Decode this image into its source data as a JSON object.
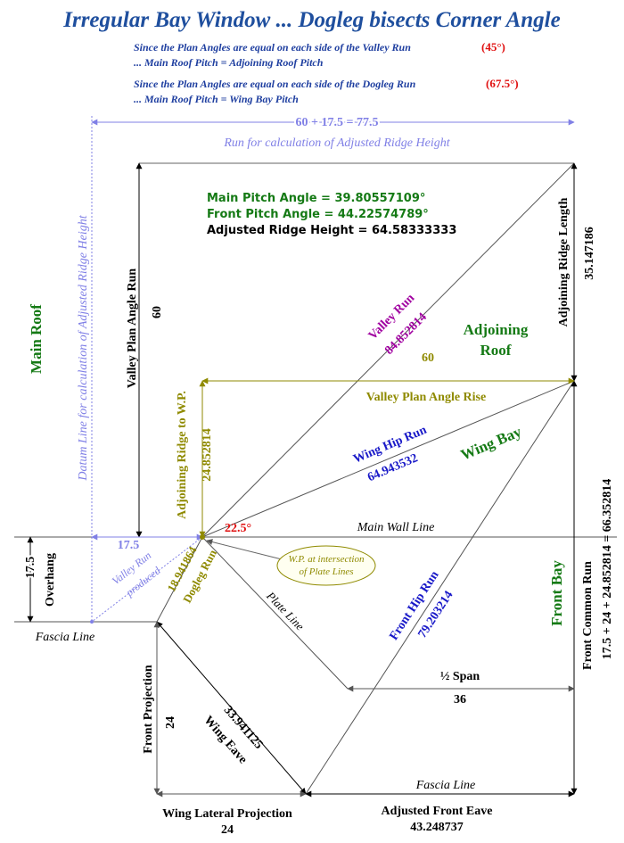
{
  "title": "Irregular Bay Window ... Dogleg bisects Corner Angle",
  "notes": {
    "line1": "Since the Plan Angles are equal on each side of the Valley Run",
    "line1_angle": "(45°)",
    "line2": "... Main Roof Pitch = Adjoining Roof Pitch",
    "line3": "Since the Plan Angles are equal on each side of the Dogleg Run",
    "line3_angle": "(67.5°)",
    "line4": "... Main Roof Pitch = Wing Bay Pitch"
  },
  "top": {
    "dimension": "60 + 17.5 = 77.5",
    "run_label": "Run for calculation of Adjusted Ridge Height"
  },
  "results": {
    "main_pitch": "Main Pitch Angle = 39.80557109°",
    "front_pitch": "Front Pitch Angle = 44.22574789°",
    "ridge_height": "Adjusted Ridge Height = 64.58333333"
  },
  "areas": {
    "main_roof": "Main Roof",
    "adjoining_roof_1": "Adjoining",
    "adjoining_roof_2": "Roof",
    "wing_bay": "Wing Bay",
    "front_bay": "Front Bay"
  },
  "labels": {
    "datum_line": "Datum Line for calculation of Adjusted Ridge Height",
    "valley_plan_angle_run": "Valley Plan Angle Run",
    "valley_plan_angle_run_value": "60",
    "adjoining_ridge_length": "Adjoining Ridge Length",
    "adjoining_ridge_length_value": "35.147186",
    "valley_run": "Valley Run",
    "valley_run_value": "84.852814",
    "valley_plan_angle_rise_value": "60",
    "valley_plan_angle_rise": "Valley Plan Angle Rise",
    "adjoining_ridge_to_wp": "Adjoining Ridge to W.P.",
    "adjoining_ridge_to_wp_value": "24.852814",
    "wing_hip_run": "Wing Hip Run",
    "wing_hip_run_value": "64.943532",
    "angle": "22.5°",
    "main_wall_line": "Main Wall Line",
    "left_dim": "17.5",
    "overhang_value": "17.5",
    "overhang": "Overhang",
    "valley_run_produced_1": "Valley Run",
    "valley_run_produced_2": "produced",
    "dogleg_value": "18.941864",
    "dogleg_run": "Dogleg Run",
    "wp_note_1": "W.P. at intersection",
    "wp_note_2": "of Plate Lines",
    "plate_line": "Plate Line",
    "front_hip_run": "Front Hip Run",
    "front_hip_run_value": "79.203214",
    "fascia_line_left": "Fascia Line",
    "half_span": "½ Span",
    "half_span_value": "36",
    "front_common_run": "Front Common Run",
    "front_common_run_formula": "17.5 + 24 + 24.852814 = 66.352814",
    "front_projection": "Front Projection",
    "front_projection_value": "24",
    "wing_eave_value": "33.941125",
    "wing_eave": "Wing Eave",
    "fascia_line_bottom": "Fascia Line",
    "wing_lateral_projection": "Wing Lateral Projection",
    "wing_lateral_projection_value": "24",
    "adjusted_front_eave": "Adjusted Front Eave",
    "adjusted_front_eave_value": "43.248737"
  },
  "colors": {
    "title_blue": "#1f4f9e",
    "note_blue": "#1f3fa0",
    "red": "#e01010",
    "green": "#157a15",
    "magenta": "#a000a0",
    "olive": "#8f8a00",
    "dark_blue": "#1818c8",
    "light_purple": "#8080e6",
    "black": "#000000"
  }
}
